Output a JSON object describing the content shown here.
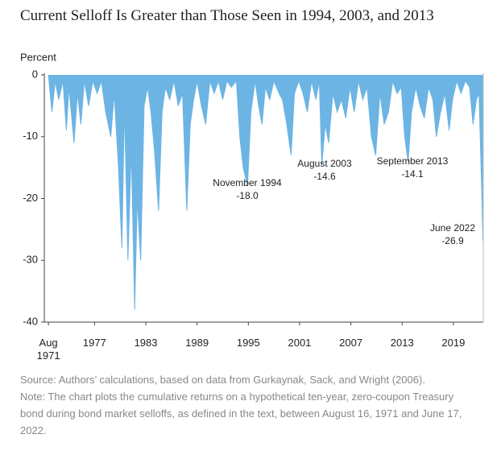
{
  "chart_data": {
    "type": "area",
    "title": "Current Selloff Is Greater than Those Seen in 1994, 2003, and 2013",
    "y_label": "Percent",
    "source": "Source: Authors’ calculations, based on data from Gurkaynak, Sack, and Wright (2006).",
    "note": "Note: The chart plots the cumulative returns on a hypothetical ten-year, zero-coupon Treasury bond during bond market selloffs, as defined in the text, between August 16, 1971 and June 17, 2022.",
    "color": "#6cb4e4",
    "xlim": [
      1971.4,
      2022.5
    ],
    "ylim": [
      -40,
      0
    ],
    "xticks": [
      {
        "value": 1971.6,
        "label": "Aug 1971"
      },
      1977,
      1983,
      1989,
      1995,
      2001,
      2007,
      2013,
      2019
    ],
    "yticks": [
      0,
      -10,
      -20,
      -30,
      -40
    ],
    "x": [
      1971.6,
      1972.0,
      1972.4,
      1972.8,
      1973.3,
      1973.7,
      1974.0,
      1974.6,
      1975.0,
      1975.4,
      1975.8,
      1976.3,
      1976.8,
      1977.3,
      1977.8,
      1978.3,
      1978.9,
      1979.3,
      1979.8,
      1980.2,
      1980.5,
      1980.9,
      1981.3,
      1981.7,
      1982.0,
      1982.4,
      1982.8,
      1983.2,
      1983.6,
      1984.0,
      1984.5,
      1984.9,
      1985.3,
      1985.8,
      1986.3,
      1986.8,
      1987.3,
      1987.8,
      1988.2,
      1988.6,
      1989.0,
      1989.5,
      1990.0,
      1990.5,
      1991.0,
      1991.5,
      1992.0,
      1992.5,
      1993.0,
      1993.6,
      1994.0,
      1994.4,
      1994.9,
      1995.3,
      1995.8,
      1996.2,
      1996.6,
      1997.0,
      1997.5,
      1998.0,
      1998.6,
      1999.0,
      1999.5,
      2000.0,
      2000.4,
      2000.9,
      2001.4,
      2001.9,
      2002.4,
      2002.9,
      2003.3,
      2003.6,
      2004.0,
      2004.4,
      2004.9,
      2005.4,
      2005.9,
      2006.4,
      2006.9,
      2007.4,
      2007.9,
      2008.4,
      2008.9,
      2009.4,
      2009.9,
      2010.4,
      2010.9,
      2011.4,
      2011.9,
      2012.4,
      2012.9,
      2013.3,
      2013.7,
      2014.1,
      2014.6,
      2015.1,
      2015.6,
      2016.1,
      2016.6,
      2017.0,
      2017.5,
      2018.0,
      2018.5,
      2018.9,
      2019.4,
      2019.9,
      2020.4,
      2020.9,
      2021.3,
      2021.7,
      2022.0,
      2022.3,
      2022.46
    ],
    "values": [
      0,
      -6,
      -1,
      -4,
      -1,
      -9,
      -2,
      -11,
      -3,
      -8,
      -1,
      -5,
      -1,
      -3,
      -1,
      -6,
      -10,
      -3,
      -15,
      -28,
      -5,
      -30,
      -12,
      -38,
      -20,
      -30,
      -5,
      -2,
      -6,
      -12,
      -22,
      -6,
      -2,
      -4,
      -1,
      -5,
      -3,
      -22,
      -8,
      -4,
      -1,
      -5,
      -8,
      -1,
      -3,
      -1,
      -4,
      -1,
      -2,
      -1,
      -10,
      -15,
      -18.0,
      -6,
      -1,
      -5,
      -8,
      -2,
      -4,
      -1,
      -3,
      -4,
      -8,
      -13,
      -3,
      -1,
      -3,
      -6,
      -1,
      -4,
      -1,
      -14.6,
      -8,
      -11,
      -3,
      -6,
      -4,
      -7,
      -2,
      -6,
      -1,
      -4,
      -2,
      -10,
      -13,
      -3,
      -8,
      -6,
      -1,
      -3,
      -2,
      -10,
      -14.1,
      -6,
      -2,
      -5,
      -7,
      -2,
      -4,
      -10,
      -6,
      -3,
      -9,
      -4,
      -1,
      -3,
      -1,
      -2,
      -8,
      -4,
      -3,
      -18,
      -26.9
    ],
    "annotations": [
      {
        "text": "November 1994",
        "value": {
          "value": -18.0,
          "label": "-18.0"
        }
      },
      {
        "text": "August 2003",
        "value": -14.6
      },
      {
        "text": "September 2013",
        "value": -14.1
      },
      {
        "text": "June 2022",
        "value": -26.9
      }
    ]
  }
}
